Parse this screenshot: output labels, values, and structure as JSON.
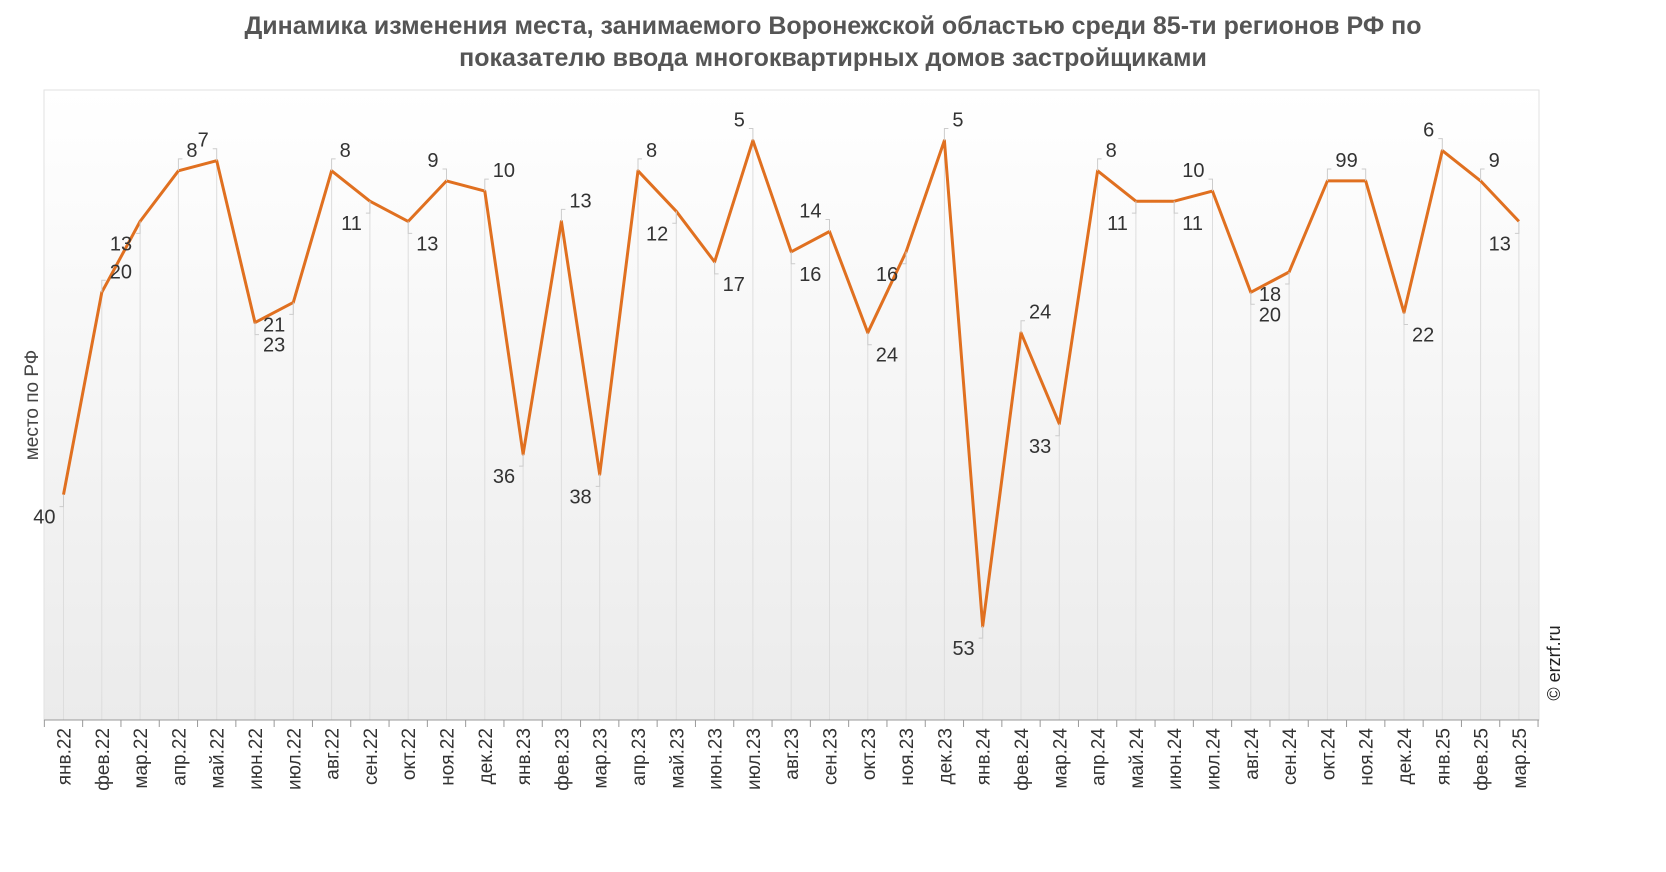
{
  "chart_data": {
    "type": "line",
    "title_lines": [
      "Динамика изменения места, занимаемого Воронежской областью среди 85-ти регионов РФ по",
      "показателю ввода многоквартирных домов застройщиками"
    ],
    "xlabel": "",
    "ylabel": "место по РФ",
    "y_reversed": true,
    "ylim": [
      1,
      60
    ],
    "grid": false,
    "categories": [
      "янв.22",
      "фев.22",
      "мар.22",
      "апр.22",
      "май.22",
      "июн.22",
      "июл.22",
      "авг.22",
      "сен.22",
      "окт.22",
      "ноя.22",
      "дек.22",
      "янв.23",
      "фев.23",
      "мар.23",
      "апр.23",
      "май.23",
      "июн.23",
      "июл.23",
      "авг.23",
      "сен.23",
      "окт.23",
      "ноя.23",
      "дек.23",
      "янв.24",
      "фев.24",
      "мар.24",
      "апр.24",
      "май.24",
      "июн.24",
      "июл.24",
      "авг.24",
      "сен.24",
      "окт.24",
      "ноя.24",
      "дек.24",
      "янв.25",
      "фев.25",
      "мар.25"
    ],
    "series": [
      {
        "color": "#e07020",
        "values": [
          40,
          20,
          13,
          8,
          7,
          23,
          21,
          8,
          11,
          13,
          9,
          10,
          36,
          13,
          38,
          8,
          12,
          17,
          5,
          16,
          14,
          24,
          16,
          5,
          53,
          24,
          33,
          8,
          11,
          11,
          10,
          20,
          18,
          9,
          9,
          22,
          6,
          9,
          13
        ]
      }
    ]
  },
  "watermark": "© erzrf.ru"
}
